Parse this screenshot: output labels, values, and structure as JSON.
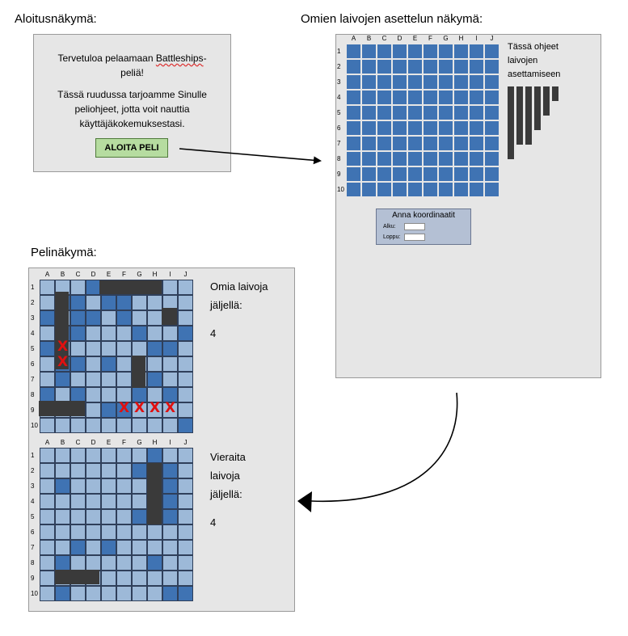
{
  "headings": {
    "start_view": "Aloitusnäkymä:",
    "placement_view": "Omien laivojen asettelun näkymä:",
    "game_view": "Pelinäkymä:"
  },
  "welcome": {
    "line1a": "Tervetuloa pelaamaan ",
    "line1b": "Battleships",
    "line1c": "-",
    "line2": "peliä!",
    "line3": "Tässä ruudussa tarjoamme Sinulle",
    "line4": "peliohjeet, jotta voit nauttia",
    "line5": "käyttäjäkokemuksestasi.",
    "start_button": "ALOITA PELI"
  },
  "grid": {
    "columns": [
      "A",
      "B",
      "C",
      "D",
      "E",
      "F",
      "G",
      "H",
      "I",
      "J"
    ],
    "rows": [
      "1",
      "2",
      "3",
      "4",
      "5",
      "6",
      "7",
      "8",
      "9",
      "10"
    ]
  },
  "placement": {
    "instructions": [
      "Tässä ohjeet",
      "laivojen",
      "asettamiseen"
    ],
    "coords": {
      "title": "Anna koordinaatit",
      "start_label": "Alku:",
      "end_label": "Loppu:"
    },
    "ship_lengths": [
      5,
      4,
      4,
      3,
      2,
      1
    ]
  },
  "own_board": {
    "label_lines": [
      "Omia laivoja",
      "jäljellä:"
    ],
    "count": "4",
    "hit_mark": "X",
    "dark_cells": [
      "A3",
      "A5",
      "A8",
      "B2",
      "B4",
      "B6",
      "B7",
      "C2",
      "C3",
      "C4",
      "C6",
      "C8",
      "D1",
      "D3",
      "E2",
      "E6",
      "E9",
      "F2",
      "F3",
      "F9",
      "G4",
      "G8",
      "H5",
      "H7",
      "I5",
      "I8",
      "J4",
      "J10"
    ]
  },
  "enemy_board": {
    "label_lines": [
      "Vieraita",
      "laivoja",
      "jäljellä:"
    ],
    "count": "4",
    "dark_cells": [
      "B3",
      "B8",
      "B10",
      "C7",
      "E7",
      "G2",
      "G5",
      "H1",
      "H8",
      "I2",
      "I3",
      "I4",
      "I5",
      "I10",
      "J10"
    ]
  },
  "colors": {
    "placement_cell": "#3f73b3",
    "light_cell": "#9db9d8",
    "dark_cell": "#3f73b3",
    "ship": "#3a3a3a",
    "hit": "#e01010",
    "button": "#b6dca0"
  }
}
